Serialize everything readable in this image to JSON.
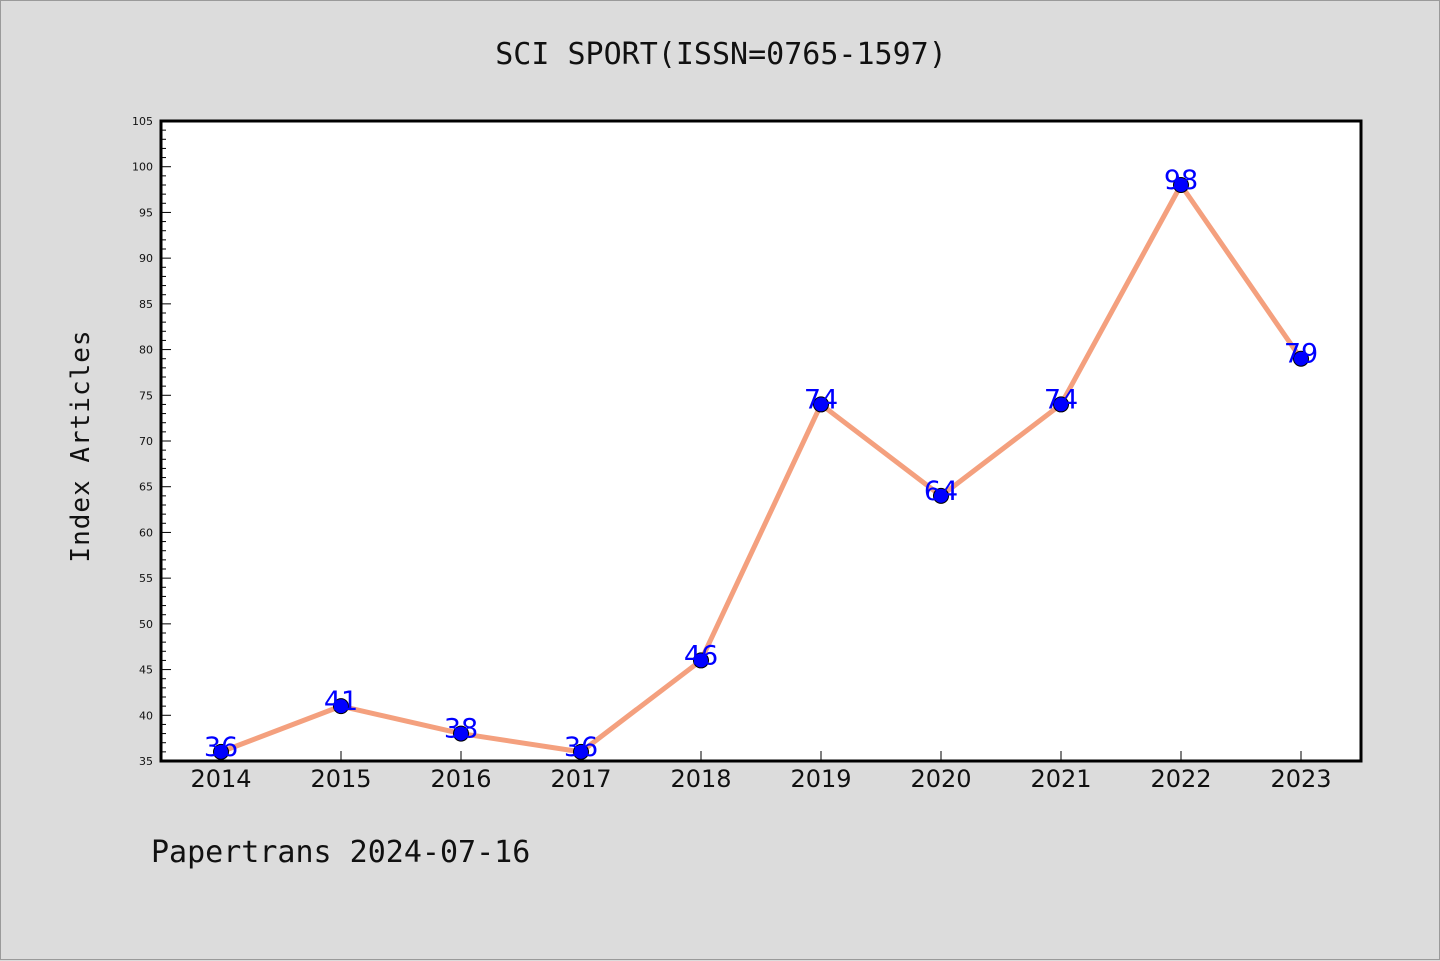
{
  "chart_data": {
    "type": "line",
    "title": "SCI SPORT(ISSN=0765-1597)",
    "ylabel": "Index Articles",
    "xlabel": "",
    "categories": [
      "2014",
      "2015",
      "2016",
      "2017",
      "2018",
      "2019",
      "2020",
      "2021",
      "2022",
      "2023"
    ],
    "values": [
      36,
      41,
      38,
      36,
      46,
      74,
      64,
      74,
      98,
      79
    ],
    "ylim": [
      35,
      105
    ],
    "ytick_step": 5,
    "grid": false,
    "legend": "none",
    "line_color": "#f4a07e",
    "marker_color": "#0000ff",
    "label_color": "#0000ff"
  },
  "footer": {
    "text": "Papertrans 2024-07-16"
  }
}
